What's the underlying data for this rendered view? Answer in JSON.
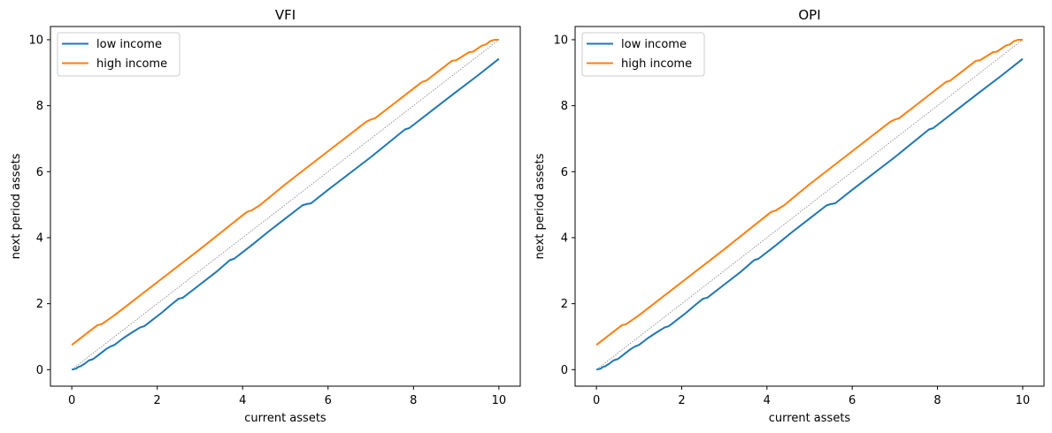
{
  "figure": {
    "background": "#ffffff"
  },
  "colors": {
    "low": "#1f77b4",
    "high": "#ff7f0e",
    "diagonal": "#808080"
  },
  "chart_data": [
    {
      "type": "line",
      "title": "VFI",
      "xlabel": "current assets",
      "ylabel": "next period assets",
      "xlim": [
        -0.5,
        10.5
      ],
      "ylim": [
        -0.5,
        10.4
      ],
      "xticks": [
        0,
        2,
        4,
        6,
        8,
        10
      ],
      "yticks": [
        0,
        2,
        4,
        6,
        8,
        10
      ],
      "grid": false,
      "legend_position": "top-left",
      "reference_line": {
        "x": [
          0,
          10
        ],
        "y": [
          0,
          10
        ],
        "style": "dotted"
      },
      "series": [
        {
          "name": "low income",
          "color": "#1f77b4",
          "x": [
            0,
            0.1,
            0.15,
            0.2,
            0.3,
            0.4,
            0.5,
            0.6,
            0.7,
            0.8,
            0.9,
            1.0,
            1.2,
            1.4,
            1.6,
            1.7,
            1.9,
            2.1,
            2.3,
            2.5,
            2.6,
            3.0,
            3.4,
            3.7,
            3.8,
            4.2,
            4.6,
            5.0,
            5.4,
            5.5,
            5.6,
            6.0,
            7.0,
            7.8,
            7.9,
            8.5,
            9.0,
            9.5,
            10.0
          ],
          "y": [
            0.0,
            0.03,
            0.08,
            0.1,
            0.18,
            0.28,
            0.32,
            0.42,
            0.52,
            0.62,
            0.7,
            0.75,
            0.95,
            1.12,
            1.28,
            1.32,
            1.52,
            1.72,
            1.94,
            2.15,
            2.18,
            2.58,
            2.98,
            3.32,
            3.36,
            3.76,
            4.18,
            4.58,
            4.98,
            5.02,
            5.04,
            5.45,
            6.44,
            7.28,
            7.32,
            7.92,
            8.42,
            8.91,
            9.42
          ]
        },
        {
          "name": "high income",
          "color": "#ff7f0e",
          "x": [
            0,
            0.6,
            0.7,
            1.0,
            2.0,
            3.0,
            4.0,
            4.1,
            4.2,
            4.4,
            5.0,
            6.0,
            6.9,
            7.0,
            7.1,
            7.5,
            8.0,
            8.2,
            8.3,
            8.6,
            8.9,
            9.0,
            9.3,
            9.4,
            9.6,
            9.7,
            9.8,
            9.9,
            10.0
          ],
          "y": [
            0.75,
            1.35,
            1.38,
            1.65,
            2.65,
            3.65,
            4.68,
            4.78,
            4.82,
            4.98,
            5.62,
            6.62,
            7.52,
            7.58,
            7.62,
            8.02,
            8.52,
            8.72,
            8.76,
            9.06,
            9.36,
            9.38,
            9.62,
            9.64,
            9.82,
            9.86,
            9.96,
            10.0,
            10.0
          ]
        }
      ]
    },
    {
      "type": "line",
      "title": "OPI",
      "xlabel": "current assets",
      "ylabel": "next period assets",
      "xlim": [
        -0.5,
        10.5
      ],
      "ylim": [
        -0.5,
        10.4
      ],
      "xticks": [
        0,
        2,
        4,
        6,
        8,
        10
      ],
      "yticks": [
        0,
        2,
        4,
        6,
        8,
        10
      ],
      "grid": false,
      "legend_position": "top-left",
      "reference_line": {
        "x": [
          0,
          10
        ],
        "y": [
          0,
          10
        ],
        "style": "dotted"
      },
      "series": [
        {
          "name": "low income",
          "color": "#1f77b4",
          "x": [
            0,
            0.1,
            0.15,
            0.2,
            0.3,
            0.4,
            0.5,
            0.6,
            0.7,
            0.8,
            0.9,
            1.0,
            1.2,
            1.4,
            1.6,
            1.7,
            1.9,
            2.1,
            2.3,
            2.5,
            2.6,
            3.0,
            3.4,
            3.7,
            3.8,
            4.2,
            4.6,
            5.0,
            5.4,
            5.5,
            5.6,
            6.0,
            7.0,
            7.8,
            7.9,
            8.5,
            9.0,
            9.5,
            10.0
          ],
          "y": [
            0.0,
            0.03,
            0.08,
            0.1,
            0.18,
            0.28,
            0.32,
            0.42,
            0.52,
            0.62,
            0.7,
            0.75,
            0.95,
            1.12,
            1.28,
            1.32,
            1.52,
            1.72,
            1.94,
            2.15,
            2.18,
            2.58,
            2.98,
            3.32,
            3.36,
            3.76,
            4.18,
            4.58,
            4.98,
            5.02,
            5.04,
            5.45,
            6.44,
            7.28,
            7.32,
            7.92,
            8.42,
            8.91,
            9.42
          ]
        },
        {
          "name": "high income",
          "color": "#ff7f0e",
          "x": [
            0,
            0.6,
            0.7,
            1.0,
            2.0,
            3.0,
            4.0,
            4.1,
            4.2,
            4.4,
            5.0,
            6.0,
            6.9,
            7.0,
            7.1,
            7.5,
            8.0,
            8.2,
            8.3,
            8.6,
            8.9,
            9.0,
            9.3,
            9.4,
            9.6,
            9.7,
            9.8,
            9.9,
            10.0
          ],
          "y": [
            0.75,
            1.35,
            1.38,
            1.65,
            2.65,
            3.65,
            4.68,
            4.78,
            4.82,
            4.98,
            5.62,
            6.62,
            7.52,
            7.58,
            7.62,
            8.02,
            8.52,
            8.72,
            8.76,
            9.06,
            9.36,
            9.38,
            9.62,
            9.64,
            9.82,
            9.86,
            9.96,
            10.0,
            10.0
          ]
        }
      ]
    }
  ]
}
